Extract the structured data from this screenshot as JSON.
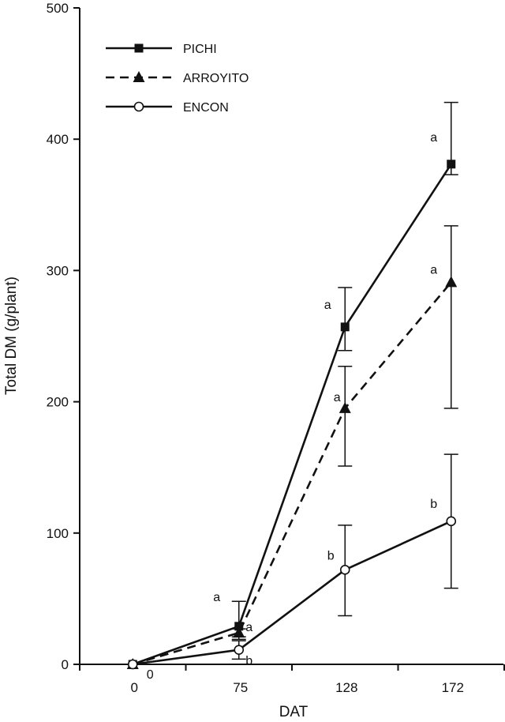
{
  "chart_data": {
    "type": "line",
    "title": "",
    "xlabel": "DAT",
    "ylabel": "Total DM (g/plant)",
    "categories": [
      "0",
      "75",
      "128",
      "172"
    ],
    "ylim": [
      0,
      500
    ],
    "yticks": [
      0,
      100,
      200,
      300,
      400,
      500
    ],
    "grid": false,
    "legend": {
      "position": "top-left"
    },
    "series": [
      {
        "name": "PICHI",
        "marker": "square-filled",
        "line_style": "solid",
        "values": [
          0,
          29,
          257,
          381
        ],
        "error": [
          [
            0,
            0
          ],
          [
            10,
            19
          ],
          [
            18,
            30
          ],
          [
            8,
            47
          ]
        ],
        "labels": [
          "",
          "a",
          "a",
          "a"
        ]
      },
      {
        "name": "ARROYITO",
        "marker": "triangle-filled",
        "line_style": "dashed",
        "values": [
          0,
          24,
          195,
          291
        ],
        "error": [
          [
            0,
            0
          ],
          [
            3,
            3
          ],
          [
            44,
            32
          ],
          [
            96,
            43
          ]
        ],
        "labels": [
          "",
          "a",
          "a",
          "a"
        ]
      },
      {
        "name": "ENCON",
        "marker": "circle-open",
        "line_style": "solid",
        "values": [
          0,
          11,
          72,
          109
        ],
        "error": [
          [
            0,
            0
          ],
          [
            7,
            7
          ],
          [
            35,
            34
          ],
          [
            51,
            51
          ]
        ],
        "labels": [
          "0",
          "b",
          "b",
          "b"
        ]
      }
    ]
  }
}
